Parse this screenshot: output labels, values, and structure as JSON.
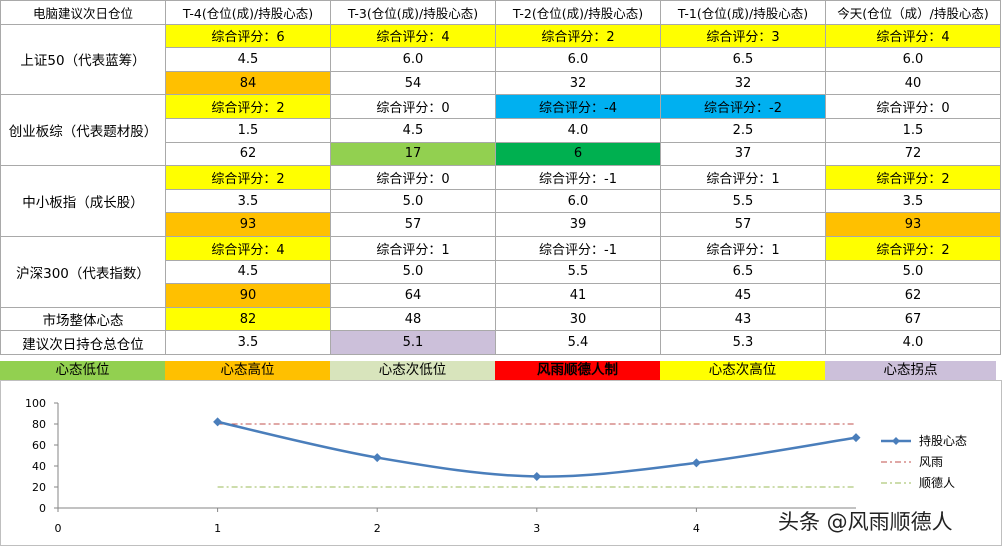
{
  "table": {
    "headers": [
      "电脑建议次日仓位",
      "T-4(仓位(成)/持股心态)",
      "T-3(仓位(成)/持股心态)",
      "T-2(仓位(成)/持股心态)",
      "T-1(仓位(成)/持股心态)",
      "今天(仓位（成）/持股心态)"
    ],
    "indices": [
      {
        "name": "上证50（代表蓝筹）",
        "scores": [
          "综合评分：6",
          "综合评分：4",
          "综合评分：2",
          "综合评分：3",
          "综合评分：4"
        ],
        "score_colors": [
          "yellow",
          "yellow",
          "yellow",
          "yellow",
          "yellow"
        ],
        "positions": [
          "4.5",
          "6.0",
          "6.0",
          "6.5",
          "6.0"
        ],
        "sentiment": [
          "84",
          "54",
          "32",
          "32",
          "40"
        ],
        "sentiment_colors": [
          "orange",
          "",
          "",
          "",
          ""
        ]
      },
      {
        "name": "创业板综（代表题材股）",
        "scores": [
          "综合评分：2",
          "综合评分：0",
          "综合评分：-4",
          "综合评分：-2",
          "综合评分：0"
        ],
        "score_colors": [
          "yellow",
          "",
          "blue",
          "blue",
          ""
        ],
        "positions": [
          "1.5",
          "4.5",
          "4.0",
          "2.5",
          "1.5"
        ],
        "sentiment": [
          "62",
          "17",
          "6",
          "37",
          "72"
        ],
        "sentiment_colors": [
          "",
          "lgreen",
          "dgreen",
          "",
          ""
        ]
      },
      {
        "name": "中小板指（成长股）",
        "scores": [
          "综合评分：2",
          "综合评分：0",
          "综合评分：-1",
          "综合评分：1",
          "综合评分：2"
        ],
        "score_colors": [
          "yellow",
          "",
          "",
          "",
          "yellow"
        ],
        "positions": [
          "3.5",
          "5.0",
          "6.0",
          "5.5",
          "3.5"
        ],
        "sentiment": [
          "93",
          "57",
          "39",
          "57",
          "93"
        ],
        "sentiment_colors": [
          "orange",
          "",
          "",
          "",
          "orange"
        ]
      },
      {
        "name": "沪深300（代表指数）",
        "scores": [
          "综合评分：4",
          "综合评分：1",
          "综合评分：-1",
          "综合评分：1",
          "综合评分：2"
        ],
        "score_colors": [
          "yellow",
          "",
          "",
          "",
          "yellow"
        ],
        "positions": [
          "4.5",
          "5.0",
          "5.5",
          "6.5",
          "5.0"
        ],
        "sentiment": [
          "90",
          "64",
          "41",
          "45",
          "62"
        ],
        "sentiment_colors": [
          "orange",
          "",
          "",
          "",
          ""
        ]
      }
    ],
    "market_row": {
      "label": "市场整体心态",
      "values": [
        "82",
        "48",
        "30",
        "43",
        "67"
      ],
      "colors": [
        "yellow",
        "",
        "",
        "",
        ""
      ]
    },
    "position_row": {
      "label": "建议次日持仓总仓位",
      "values": [
        "3.5",
        "5.1",
        "5.4",
        "5.3",
        "4.0"
      ],
      "colors": [
        "",
        "lavender",
        "",
        "",
        ""
      ]
    }
  },
  "color_legend": [
    {
      "label": "心态低位",
      "bg": "#92d050",
      "fg": "#000000",
      "bold": false
    },
    {
      "label": "心态高位",
      "bg": "#ffc000",
      "fg": "#000000",
      "bold": false
    },
    {
      "label": "心态次低位",
      "bg": "#d8e4bc",
      "fg": "#000000",
      "bold": false
    },
    {
      "label": "风雨顺德人制",
      "bg": "#ff0000",
      "fg": "#000000",
      "bold": true
    },
    {
      "label": "心态次高位",
      "bg": "#ffff00",
      "fg": "#000000",
      "bold": false
    },
    {
      "label": "心态拐点",
      "bg": "#ccc0da",
      "fg": "#000000",
      "bold": false
    }
  ],
  "chart_data": {
    "type": "line",
    "x": [
      1,
      2,
      3,
      4,
      5
    ],
    "xlim": [
      0,
      5
    ],
    "x_ticks": [
      "0",
      "1",
      "2",
      "3",
      "4"
    ],
    "ylim": [
      0,
      100
    ],
    "y_ticks": [
      "0",
      "20",
      "40",
      "60",
      "80",
      "100"
    ],
    "grid": false,
    "legend_position": "right",
    "series": [
      {
        "name": "持股心态",
        "values": [
          82,
          48,
          30,
          43,
          67
        ],
        "color": "#4a7ebb",
        "style": "solid-diamond-markers",
        "smooth": true
      },
      {
        "name": "风雨",
        "values": [
          80,
          80,
          80,
          80,
          80
        ],
        "color": "#c0504d",
        "style": "dash-dot"
      },
      {
        "name": "顺德人",
        "values": [
          20,
          20,
          20,
          20,
          20
        ],
        "color": "#9bbb59",
        "style": "dash-dot"
      }
    ]
  },
  "watermark": "头条 @风雨顺德人",
  "colors": {
    "yellow": "#ffff00",
    "orange": "#ffc000",
    "blue": "#00b0f0",
    "lgreen": "#92d050",
    "dgreen": "#00b050",
    "lavender": "#ccc0da"
  }
}
